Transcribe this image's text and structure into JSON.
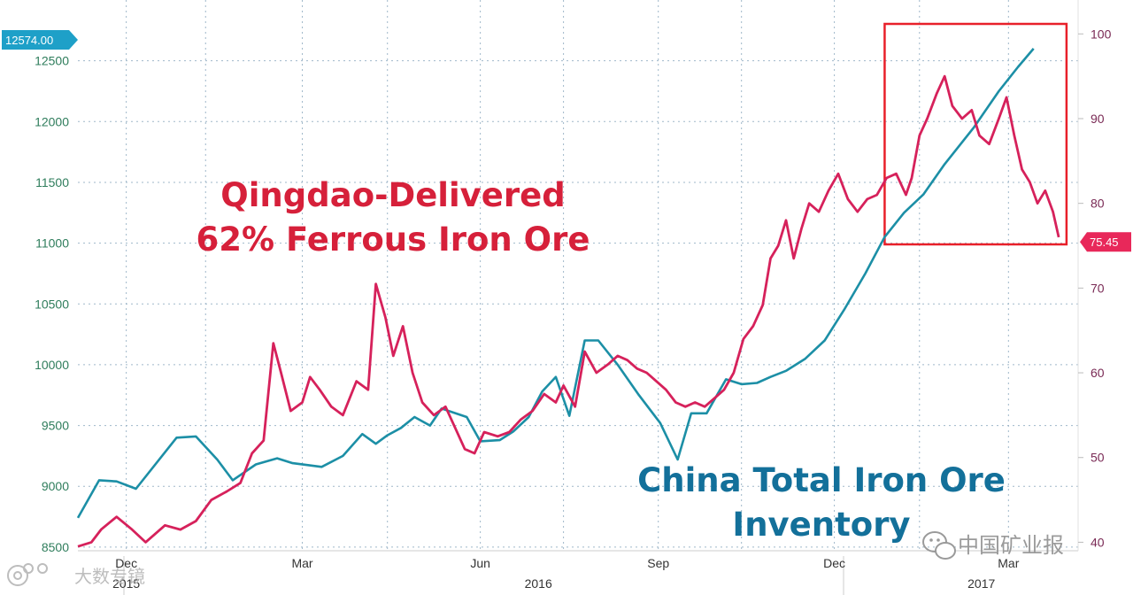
{
  "chart_data": {
    "type": "line",
    "title": "",
    "annotations": {
      "red_label": [
        "Qingdao-Delivered",
        "62% Ferrous Iron Ore"
      ],
      "blue_label": [
        "China Total Iron Ore",
        "Inventory"
      ]
    },
    "x_axis": {
      "month_labels": [
        "Dec",
        "Mar",
        "Jun",
        "Sep",
        "Dec",
        "Mar"
      ],
      "year_labels": [
        "2015",
        "2016",
        "2017"
      ],
      "range": [
        "2015-11-20",
        "2017-04-20"
      ]
    },
    "y_left": {
      "label": "",
      "ticks": [
        8500,
        9000,
        9500,
        10000,
        10500,
        11000,
        11500,
        12000,
        12500
      ],
      "range": [
        8470,
        13000
      ],
      "current_value_label": "12574.00",
      "color": "#2f7d5c"
    },
    "y_right": {
      "label": "",
      "ticks": [
        40,
        50,
        60,
        70,
        80,
        90,
        100
      ],
      "range": [
        39,
        104
      ],
      "current_value_label": "75.45",
      "color": "#7a2a55"
    },
    "grid": true,
    "highlight_box": {
      "from": "2017-01-10",
      "to": "2017-04-14",
      "color": "#e8202a"
    },
    "series": [
      {
        "name": "China Total Iron Ore Inventory",
        "axis": "left",
        "color": "#1c8fa6",
        "points": [
          [
            "2015-11-20",
            8740
          ],
          [
            "2015-12-01",
            9050
          ],
          [
            "2015-12-10",
            9040
          ],
          [
            "2015-12-20",
            8980
          ],
          [
            "2016-01-10",
            9400
          ],
          [
            "2016-01-20",
            9410
          ],
          [
            "2016-01-31",
            9220
          ],
          [
            "2016-02-08",
            9050
          ],
          [
            "2016-02-20",
            9180
          ],
          [
            "2016-03-02",
            9230
          ],
          [
            "2016-03-10",
            9190
          ],
          [
            "2016-03-25",
            9160
          ],
          [
            "2016-04-05",
            9250
          ],
          [
            "2016-04-15",
            9430
          ],
          [
            "2016-04-22",
            9350
          ],
          [
            "2016-04-28",
            9420
          ],
          [
            "2016-05-05",
            9480
          ],
          [
            "2016-05-12",
            9570
          ],
          [
            "2016-05-20",
            9500
          ],
          [
            "2016-05-26",
            9640
          ],
          [
            "2016-06-08",
            9570
          ],
          [
            "2016-06-15",
            9370
          ],
          [
            "2016-06-25",
            9380
          ],
          [
            "2016-07-02",
            9450
          ],
          [
            "2016-07-10",
            9570
          ],
          [
            "2016-07-17",
            9780
          ],
          [
            "2016-07-24",
            9900
          ],
          [
            "2016-07-31",
            9580
          ],
          [
            "2016-08-08",
            10200
          ],
          [
            "2016-08-15",
            10200
          ],
          [
            "2016-08-25",
            10000
          ],
          [
            "2016-09-05",
            9750
          ],
          [
            "2016-09-16",
            9520
          ],
          [
            "2016-09-25",
            9220
          ],
          [
            "2016-10-02",
            9600
          ],
          [
            "2016-10-10",
            9600
          ],
          [
            "2016-10-20",
            9880
          ],
          [
            "2016-10-28",
            9840
          ],
          [
            "2016-11-05",
            9850
          ],
          [
            "2016-11-12",
            9900
          ],
          [
            "2016-11-20",
            9950
          ],
          [
            "2016-11-30",
            10050
          ],
          [
            "2016-12-10",
            10200
          ],
          [
            "2016-12-20",
            10450
          ],
          [
            "2016-12-31",
            10750
          ],
          [
            "2017-01-10",
            11050
          ],
          [
            "2017-01-20",
            11250
          ],
          [
            "2017-01-30",
            11400
          ],
          [
            "2017-02-10",
            11650
          ],
          [
            "2017-02-25",
            11950
          ],
          [
            "2017-03-10",
            12250
          ],
          [
            "2017-03-20",
            12450
          ],
          [
            "2017-03-28",
            12600
          ]
        ]
      },
      {
        "name": "Qingdao-Delivered 62% Ferrous Iron Ore",
        "axis": "right",
        "color": "#d6215b",
        "points": [
          [
            "2015-11-20",
            39.5
          ],
          [
            "2015-11-27",
            40.0
          ],
          [
            "2015-12-02",
            41.5
          ],
          [
            "2015-12-10",
            43.0
          ],
          [
            "2015-12-18",
            41.5
          ],
          [
            "2015-12-25",
            40.0
          ],
          [
            "2016-01-04",
            42.0
          ],
          [
            "2016-01-12",
            41.5
          ],
          [
            "2016-01-20",
            42.5
          ],
          [
            "2016-01-28",
            45.0
          ],
          [
            "2016-02-05",
            46.0
          ],
          [
            "2016-02-12",
            47.0
          ],
          [
            "2016-02-18",
            50.5
          ],
          [
            "2016-02-24",
            52.0
          ],
          [
            "2016-02-29",
            63.5
          ],
          [
            "2016-03-04",
            60.0
          ],
          [
            "2016-03-09",
            55.5
          ],
          [
            "2016-03-15",
            56.5
          ],
          [
            "2016-03-19",
            59.5
          ],
          [
            "2016-03-24",
            58.0
          ],
          [
            "2016-03-30",
            56.0
          ],
          [
            "2016-04-05",
            55.0
          ],
          [
            "2016-04-12",
            59.0
          ],
          [
            "2016-04-18",
            58.0
          ],
          [
            "2016-04-22",
            70.5
          ],
          [
            "2016-04-27",
            66.5
          ],
          [
            "2016-05-01",
            62.0
          ],
          [
            "2016-05-06",
            65.5
          ],
          [
            "2016-05-11",
            60.0
          ],
          [
            "2016-05-16",
            56.5
          ],
          [
            "2016-05-22",
            55.0
          ],
          [
            "2016-05-28",
            56.0
          ],
          [
            "2016-06-02",
            53.5
          ],
          [
            "2016-06-07",
            51.0
          ],
          [
            "2016-06-12",
            50.5
          ],
          [
            "2016-06-17",
            53.0
          ],
          [
            "2016-06-24",
            52.5
          ],
          [
            "2016-06-30",
            53.0
          ],
          [
            "2016-07-06",
            54.5
          ],
          [
            "2016-07-12",
            55.5
          ],
          [
            "2016-07-18",
            57.5
          ],
          [
            "2016-07-24",
            56.5
          ],
          [
            "2016-07-28",
            58.5
          ],
          [
            "2016-08-03",
            56.0
          ],
          [
            "2016-08-08",
            62.5
          ],
          [
            "2016-08-14",
            60.0
          ],
          [
            "2016-08-20",
            61.0
          ],
          [
            "2016-08-25",
            62.0
          ],
          [
            "2016-08-30",
            61.5
          ],
          [
            "2016-09-04",
            60.5
          ],
          [
            "2016-09-09",
            60.0
          ],
          [
            "2016-09-14",
            59.0
          ],
          [
            "2016-09-19",
            58.0
          ],
          [
            "2016-09-24",
            56.5
          ],
          [
            "2016-09-29",
            56.0
          ],
          [
            "2016-10-04",
            56.5
          ],
          [
            "2016-10-09",
            56.0
          ],
          [
            "2016-10-14",
            57.0
          ],
          [
            "2016-10-19",
            58.0
          ],
          [
            "2016-10-24",
            60.0
          ],
          [
            "2016-10-29",
            64.0
          ],
          [
            "2016-11-03",
            65.5
          ],
          [
            "2016-11-08",
            68.0
          ],
          [
            "2016-11-12",
            73.5
          ],
          [
            "2016-11-16",
            75.0
          ],
          [
            "2016-11-20",
            78.0
          ],
          [
            "2016-11-24",
            73.5
          ],
          [
            "2016-11-28",
            77.0
          ],
          [
            "2016-12-02",
            80.0
          ],
          [
            "2016-12-07",
            79.0
          ],
          [
            "2016-12-12",
            81.5
          ],
          [
            "2016-12-17",
            83.5
          ],
          [
            "2016-12-22",
            80.5
          ],
          [
            "2016-12-27",
            79.0
          ],
          [
            "2017-01-01",
            80.5
          ],
          [
            "2017-01-06",
            81.0
          ],
          [
            "2017-01-11",
            83.0
          ],
          [
            "2017-01-16",
            83.5
          ],
          [
            "2017-01-21",
            81.0
          ],
          [
            "2017-01-24",
            83.0
          ],
          [
            "2017-01-28",
            88.0
          ],
          [
            "2017-02-01",
            90.0
          ],
          [
            "2017-02-06",
            93.0
          ],
          [
            "2017-02-10",
            95.0
          ],
          [
            "2017-02-14",
            91.5
          ],
          [
            "2017-02-19",
            90.0
          ],
          [
            "2017-02-24",
            91.0
          ],
          [
            "2017-02-28",
            88.0
          ],
          [
            "2017-03-05",
            87.0
          ],
          [
            "2017-03-10",
            90.0
          ],
          [
            "2017-03-14",
            92.5
          ],
          [
            "2017-03-18",
            88.0
          ],
          [
            "2017-03-22",
            84.0
          ],
          [
            "2017-03-26",
            82.5
          ],
          [
            "2017-03-30",
            80.0
          ],
          [
            "2017-04-03",
            81.5
          ],
          [
            "2017-04-07",
            79.0
          ],
          [
            "2017-04-10",
            76.0
          ]
        ]
      }
    ]
  },
  "watermarks": {
    "bottom_right": "中国矿业报",
    "bottom_left": "大数专镜"
  }
}
